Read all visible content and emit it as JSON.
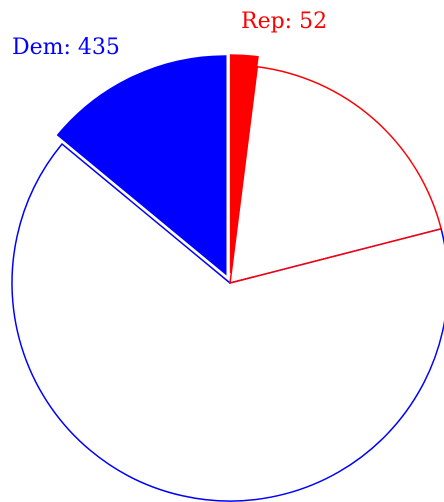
{
  "chart_data": {
    "type": "pie",
    "title": "",
    "legend": "none",
    "series": [
      {
        "name": "Dem",
        "label": "Dem: 435",
        "color": "#0000ff",
        "slices": [
          {
            "value": 65,
            "style": "outline",
            "exploded": false
          },
          {
            "value": 14,
            "style": "filled",
            "exploded": true
          }
        ]
      },
      {
        "name": "Rep",
        "label": "Rep: 52",
        "color": "#ff0000",
        "slices": [
          {
            "value": 2,
            "style": "filled",
            "exploded": true
          },
          {
            "value": 19,
            "style": "outline",
            "exploded": false
          }
        ]
      }
    ]
  }
}
